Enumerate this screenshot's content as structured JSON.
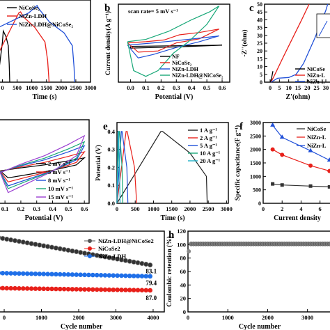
{
  "panels": {
    "a": {
      "letter": "",
      "xlabel": "Time (s)",
      "xticks": [
        "0",
        "500",
        "1000",
        "1500",
        "2000",
        "2500",
        "3000"
      ],
      "legend": [
        "NiCoSe₂",
        "NiZn-LDH",
        "NiZn-LDH@NiCoSe₂"
      ],
      "legend_colors": [
        "#000000",
        "#e8201a",
        "#1f4fd8"
      ]
    },
    "b": {
      "letter": "b",
      "annotation": "scan rate= 5 mV s⁻¹",
      "xlabel": "Potential (V)",
      "ylabel": "Current density(A g⁻¹)",
      "xticks": [
        "0.0",
        "0.1",
        "0.2",
        "0.3",
        "0.4",
        "0.5",
        "0.6"
      ],
      "legend": [
        "NF",
        "NiCoSe₂",
        "NiZn-LDH",
        "NiZn-LDH@NiCoSe₂"
      ],
      "legend_colors": [
        "#000000",
        "#e8201a",
        "#1f4fd8",
        "#18a878"
      ]
    },
    "c": {
      "letter": "c",
      "xlabel": "Z'(ohm)",
      "ylabel": "-Z''(ohm)",
      "xticks": [
        "0",
        "5",
        "10",
        "15",
        "20",
        "25",
        "30"
      ],
      "yticks": [
        "0",
        "5",
        "10",
        "15",
        "20",
        "25",
        "30",
        "35",
        "40",
        "45",
        "50"
      ],
      "legend": [
        "NiCoSe",
        "NiZn-L",
        "NiZn-L"
      ],
      "legend_colors": [
        "#000000",
        "#e8201a",
        "#1f4fd8"
      ]
    },
    "d": {
      "letter": "",
      "xlabel": "Potential (V)",
      "xticks": [
        "0.1",
        "0.2",
        "0.3",
        "0.4",
        "0.5",
        "0.6"
      ],
      "legend": [
        "2 mV s⁻¹",
        "5 mV s⁻¹",
        "8 mV s⁻¹",
        "10 mV s⁻¹",
        "15 mV s⁻¹"
      ],
      "legend_colors": [
        "#000000",
        "#e8201a",
        "#1f4fd8",
        "#18a878",
        "#9b3fd1"
      ]
    },
    "e": {
      "letter": "e",
      "xlabel": "Time (s)",
      "ylabel": "Potential (V)",
      "xticks": [
        "0",
        "500",
        "1000",
        "1500",
        "2000",
        "2500",
        "3000"
      ],
      "yticks": [
        "0.0",
        "0.1",
        "0.2",
        "0.3",
        "0.4"
      ],
      "legend": [
        "1 A g⁻¹",
        "2 A g⁻¹",
        "5 A g⁻¹",
        "10 A g⁻¹",
        "20 A g⁻¹"
      ],
      "legend_colors": [
        "#222222",
        "#e8201a",
        "#1f4fd8",
        "#18a878",
        "#1fb0c8"
      ]
    },
    "f": {
      "letter": "f",
      "xlabel": "Current density",
      "ylabel": "Specific capacitance(F g⁻¹)",
      "xticks": [
        "0",
        "2",
        "4",
        "6"
      ],
      "yticks": [
        "0",
        "500",
        "1000",
        "1500",
        "2000",
        "2500",
        "3000"
      ],
      "legend": [
        "NiCoSe",
        "NiZn-L",
        "NiZn-L"
      ],
      "legend_colors": [
        "#333333",
        "#e8201a",
        "#1f4fd8"
      ]
    },
    "g": {
      "letter": "",
      "xlabel": "Cycle number",
      "xticks": [
        "0",
        "1000",
        "2000",
        "3000",
        "4000"
      ],
      "legend": [
        "NiZn-LDH@NiCoSe2",
        "NiCoSe2",
        "NiZn-LDH"
      ],
      "legend_colors": [
        "#555555",
        "#e8201a",
        "#1f6fe8"
      ],
      "end_labels": [
        "83.1",
        "79.4",
        "87.0"
      ]
    },
    "h": {
      "letter": "h",
      "xlabel": "Cycle number",
      "ylabel": "Coulombic retention (%)",
      "xticks": [
        "0",
        "1000",
        "2000",
        "3000"
      ],
      "yticks": [
        "0",
        "20",
        "40",
        "60",
        "80",
        "100",
        "120"
      ]
    }
  },
  "chart_data": [
    {
      "panel": "a",
      "type": "line",
      "xlabel": "Time (s)",
      "xlim": [
        0,
        3000
      ],
      "series": [
        {
          "name": "NiCoSe₂",
          "x": [
            0,
            30,
            200,
            260
          ],
          "y": [
            0.08,
            0.28,
            0.2,
            0.0
          ]
        },
        {
          "name": "NiZn-LDH",
          "x": [
            0,
            560,
            640,
            1200,
            1560,
            1600
          ],
          "y": [
            0.0,
            0.38,
            0.38,
            0.28,
            0.15,
            0.0
          ]
        },
        {
          "name": "NiZn-LDH@NiCoSe₂",
          "x": [
            0,
            1180,
            1240,
            2000,
            2430,
            2460
          ],
          "y": [
            0.0,
            0.4,
            0.4,
            0.28,
            0.15,
            0.0
          ]
        }
      ]
    },
    {
      "panel": "b",
      "type": "line",
      "xlabel": "Potential (V)",
      "ylabel": "Current density(A g⁻¹)",
      "xlim": [
        -0.05,
        0.62
      ],
      "series": [
        {
          "name": "NF",
          "x": [
            0.0,
            0.3,
            0.6
          ],
          "y": [
            0,
            2,
            3
          ]
        },
        {
          "name": "NiCoSe₂",
          "x": [
            0.0,
            0.3,
            0.58
          ],
          "y": [
            0,
            12,
            28
          ]
        },
        {
          "name": "NiZn-LDH",
          "x": [
            0.0,
            0.3,
            0.58
          ],
          "y": [
            0,
            8,
            20
          ]
        },
        {
          "name": "NiZn-LDH@NiCoSe₂",
          "x": [
            0.0,
            0.35,
            0.58
          ],
          "y": [
            0,
            25,
            72
          ]
        }
      ]
    },
    {
      "panel": "c",
      "type": "line",
      "xlabel": "Z'(ohm)",
      "ylabel": "-Z''(ohm)",
      "xlim": [
        0,
        33
      ],
      "ylim": [
        0,
        50
      ],
      "series": [
        {
          "name": "NiCoSe",
          "x": [
            0.5,
            1.0,
            2.0
          ],
          "y": [
            0,
            4,
            6
          ]
        },
        {
          "name": "NiZn-L",
          "x": [
            0.5,
            5,
            15,
            21
          ],
          "y": [
            0,
            14,
            34,
            50
          ]
        },
        {
          "name": "NiZn-L",
          "x": [
            0.5,
            8,
            15,
            21,
            30
          ],
          "y": [
            0,
            2,
            4,
            15,
            50
          ]
        }
      ]
    },
    {
      "panel": "d",
      "type": "line",
      "xlabel": "Potential (V)",
      "xlim": [
        0.08,
        0.62
      ],
      "series": [
        {
          "name": "2 mV s⁻¹",
          "x": [
            0.1,
            0.6
          ],
          "y": [
            -10,
            20
          ]
        },
        {
          "name": "5 mV s⁻¹",
          "x": [
            0.1,
            0.6
          ],
          "y": [
            -15,
            28
          ]
        },
        {
          "name": "8 mV s⁻¹",
          "x": [
            0.1,
            0.6
          ],
          "y": [
            -20,
            34
          ]
        },
        {
          "name": "10 mV s⁻¹",
          "x": [
            0.1,
            0.6
          ],
          "y": [
            -24,
            38
          ]
        },
        {
          "name": "15 mV s⁻¹",
          "x": [
            0.1,
            0.6
          ],
          "y": [
            -28,
            44
          ]
        }
      ]
    },
    {
      "panel": "e",
      "type": "line",
      "xlabel": "Time (s)",
      "ylabel": "Potential (V)",
      "xlim": [
        0,
        3000
      ],
      "ylim": [
        0,
        0.45
      ],
      "series": [
        {
          "name": "1 A g⁻¹",
          "x": [
            0,
            1200,
            1250,
            2000,
            2450,
            2470
          ],
          "y": [
            0.0,
            0.4,
            0.4,
            0.28,
            0.15,
            0.0
          ]
        },
        {
          "name": "2 A g⁻¹",
          "x": [
            0,
            250,
            280,
            480,
            540
          ],
          "y": [
            0.0,
            0.4,
            0.4,
            0.2,
            0.0
          ]
        },
        {
          "name": "5 A g⁻¹",
          "x": [
            0,
            120,
            140,
            270,
            300
          ],
          "y": [
            0.0,
            0.4,
            0.4,
            0.2,
            0.0
          ]
        },
        {
          "name": "10 A g⁻¹",
          "x": [
            0,
            60,
            75,
            140,
            160
          ],
          "y": [
            0.0,
            0.4,
            0.4,
            0.2,
            0.0
          ]
        },
        {
          "name": "20 A g⁻¹",
          "x": [
            0,
            30,
            40,
            70,
            85
          ],
          "y": [
            0.0,
            0.4,
            0.4,
            0.2,
            0.0
          ]
        }
      ]
    },
    {
      "panel": "f",
      "type": "line",
      "xlabel": "Current density",
      "ylabel": "Specific capacitance(F g⁻¹)",
      "xlim": [
        0,
        7
      ],
      "ylim": [
        0,
        3000
      ],
      "series": [
        {
          "name": "NiCoSe",
          "x": [
            1,
            2,
            5,
            7
          ],
          "y": [
            720,
            680,
            640,
            610
          ]
        },
        {
          "name": "NiZn-L",
          "x": [
            1,
            2,
            5,
            7
          ],
          "y": [
            2000,
            1800,
            1400,
            1200
          ]
        },
        {
          "name": "NiZn-L",
          "x": [
            1,
            2,
            5,
            7
          ],
          "y": [
            2900,
            2450,
            1950,
            1600
          ]
        }
      ]
    },
    {
      "panel": "g",
      "type": "scatter",
      "xlabel": "Cycle number",
      "xlim": [
        0,
        4000
      ],
      "ylim": [
        40,
        115
      ],
      "series": [
        {
          "name": "NiZn-LDH@NiCoSe2",
          "x": [
            0,
            4000
          ],
          "y": [
            108,
            83.1
          ]
        },
        {
          "name": "NiCoSe2",
          "x": [
            0,
            4000
          ],
          "y": [
            79.4,
            79.4
          ]
        },
        {
          "name": "NiZn-LDH",
          "x": [
            0,
            4000
          ],
          "y": [
            87.0,
            87.0
          ]
        }
      ]
    },
    {
      "panel": "h",
      "type": "scatter",
      "xlabel": "Cycle number",
      "ylabel": "Coulombic retention (%)",
      "xlim": [
        0,
        3600
      ],
      "ylim": [
        0,
        120
      ],
      "series": [
        {
          "x": [
            0,
            100,
            3600
          ],
          "y": [
            90,
            100,
            100
          ]
        }
      ]
    }
  ]
}
